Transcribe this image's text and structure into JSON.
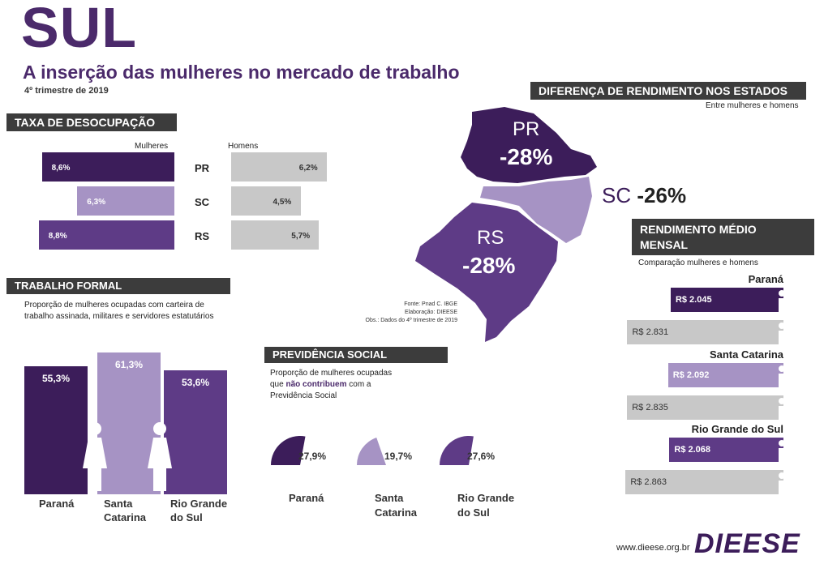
{
  "header": {
    "title": "SUL",
    "subtitle": "A inserção das mulheres no mercado de trabalho",
    "period": "4º trimestre de 2019"
  },
  "colors": {
    "parana": "#3c1d5a",
    "santa_catarina": "#a693c4",
    "rio_grande": "#5e3b86",
    "gray": "#c8c8c8",
    "section_bar": "#3c3c3c",
    "title": "#4b2a6b"
  },
  "desocupacao": {
    "title": "TAXA DE DESOCUPAÇÃO",
    "women_label": "Mulheres",
    "men_label": "Homens",
    "states": [
      "PR",
      "SC",
      "RS"
    ],
    "women": [
      "8,6%",
      "6,3%",
      "8,8%"
    ],
    "men": [
      "6,2%",
      "4,5%",
      "5,7%"
    ]
  },
  "formal": {
    "title": "TRABALHO FORMAL",
    "desc_line1": "Proporção de mulheres ocupadas com carteira de",
    "desc_line2": "trabalho assinada, militares e servidores estatutários",
    "values": [
      "55,3%",
      "61,3%",
      "53,6%"
    ],
    "names": [
      [
        "Paraná",
        ""
      ],
      [
        "Santa",
        "Catarina"
      ],
      [
        "Rio Grande",
        "do Sul"
      ]
    ]
  },
  "previdencia": {
    "title": "PREVIDÊNCIA SOCIAL",
    "desc_line1": "Proporção de mulheres ocupadas",
    "desc_pre": "que ",
    "desc_em": "não contribuem",
    "desc_post": " com a",
    "desc_line3": "Previdência Social",
    "values": [
      "27,9%",
      "19,7%",
      "27,6%"
    ],
    "names": [
      [
        "Paraná",
        ""
      ],
      [
        "Santa",
        "Catarina"
      ],
      [
        "Rio Grande",
        "do Sul"
      ]
    ]
  },
  "diferenca": {
    "title": "DIFERENÇA DE RENDIMENTO NOS ESTADOS",
    "subtitle": "Entre mulheres e homens",
    "pr_name": "PR",
    "pr_value": "-28%",
    "sc_name": "SC",
    "sc_value": "-26%",
    "rs_name": "RS",
    "rs_value": "-28%",
    "source1": "Fonte: Pnad C. IBGE",
    "source2": "Elaboração: DIEESE",
    "source3": "Obs.: Dados do 4º trimestre de 2019"
  },
  "rendimento": {
    "title_line1": "RENDIMENTO MÉDIO",
    "title_line2": "MENSAL",
    "subtitle": "Comparação mulheres e homens",
    "states": [
      "Paraná",
      "Santa Catarina",
      "Rio Grande do Sul"
    ],
    "women": [
      "R$ 2.045",
      "R$ 2.092",
      "R$ 2.068"
    ],
    "men": [
      "R$ 2.831",
      "R$ 2.835",
      "R$ 2.863"
    ]
  },
  "footer": {
    "url": "www.dieese.org.br",
    "logo": "DIEESE"
  },
  "chart_data": [
    {
      "type": "bar",
      "title": "TAXA DE DESOCUPAÇÃO",
      "categories": [
        "PR",
        "SC",
        "RS"
      ],
      "series": [
        {
          "name": "Mulheres",
          "values": [
            8.6,
            6.3,
            8.8
          ]
        },
        {
          "name": "Homens",
          "values": [
            6.2,
            4.5,
            5.7
          ]
        }
      ],
      "unit": "%"
    },
    {
      "type": "bar",
      "title": "TRABALHO FORMAL",
      "categories": [
        "Paraná",
        "Santa Catarina",
        "Rio Grande do Sul"
      ],
      "values": [
        55.3,
        61.3,
        53.6
      ],
      "unit": "%"
    },
    {
      "type": "pie",
      "title": "PREVIDÊNCIA SOCIAL",
      "categories": [
        "Paraná",
        "Santa Catarina",
        "Rio Grande do Sul"
      ],
      "values": [
        27.9,
        19.7,
        27.6
      ],
      "unit": "%"
    },
    {
      "type": "bar",
      "title": "DIFERENÇA DE RENDIMENTO NOS ESTADOS",
      "categories": [
        "PR",
        "SC",
        "RS"
      ],
      "values": [
        -28,
        -26,
        -28
      ],
      "unit": "%"
    },
    {
      "type": "bar",
      "title": "RENDIMENTO MÉDIO MENSAL",
      "categories": [
        "Paraná",
        "Santa Catarina",
        "Rio Grande do Sul"
      ],
      "series": [
        {
          "values": [
            2045,
            2092,
            2068
          ]
        },
        {
          "values": [
            2831,
            2835,
            2863
          ]
        }
      ],
      "unit": "R$"
    }
  ]
}
